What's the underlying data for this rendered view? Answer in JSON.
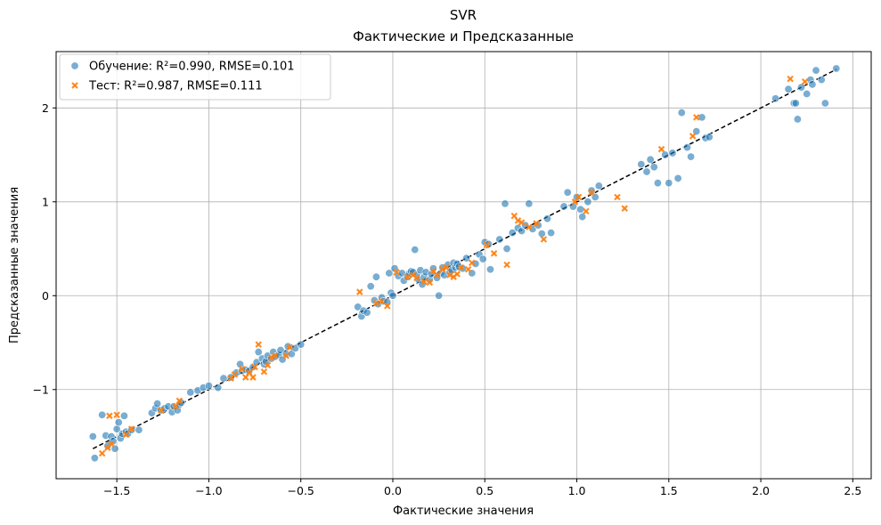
{
  "chart_data": {
    "type": "scatter",
    "title": "SVR",
    "subtitle": "Фактические и Предсказанные",
    "xlabel": "Фактические значения",
    "ylabel": "Предсказанные значения",
    "xlim": [
      -1.83,
      2.6
    ],
    "ylim": [
      -1.95,
      2.6
    ],
    "xticks": [
      -1.5,
      -1.0,
      -0.5,
      0.0,
      0.5,
      1.0,
      1.5,
      2.0,
      2.5
    ],
    "xtick_labels": [
      "−1.5",
      "−1.0",
      "−0.5",
      "0.0",
      "0.5",
      "1.0",
      "1.5",
      "2.0",
      "2.5"
    ],
    "yticks": [
      -1,
      0,
      1,
      2
    ],
    "ytick_labels": [
      "−1",
      "0",
      "1",
      "2"
    ],
    "grid": true,
    "legend_position": "top-left",
    "reference_line": {
      "x": [
        -1.63,
        2.41
      ],
      "y": [
        -1.63,
        2.41
      ],
      "style": "dashed",
      "color": "#000000"
    },
    "series": [
      {
        "name": "Обучение: R²=0.990, RMSE=0.101",
        "marker": "circle",
        "color": "#1f77b4",
        "points": [
          [
            -1.63,
            -1.5
          ],
          [
            -1.62,
            -1.73
          ],
          [
            -1.58,
            -1.27
          ],
          [
            -1.56,
            -1.49
          ],
          [
            -1.55,
            -1.6
          ],
          [
            -1.53,
            -1.5
          ],
          [
            -1.52,
            -1.55
          ],
          [
            -1.51,
            -1.63
          ],
          [
            -1.5,
            -1.42
          ],
          [
            -1.49,
            -1.35
          ],
          [
            -1.48,
            -1.52
          ],
          [
            -1.47,
            -1.47
          ],
          [
            -1.46,
            -1.28
          ],
          [
            -1.45,
            -1.45
          ],
          [
            -1.44,
            -1.47
          ],
          [
            -1.42,
            -1.43
          ],
          [
            -1.38,
            -1.43
          ],
          [
            -1.31,
            -1.25
          ],
          [
            -1.29,
            -1.2
          ],
          [
            -1.28,
            -1.15
          ],
          [
            -1.26,
            -1.22
          ],
          [
            -1.24,
            -1.2
          ],
          [
            -1.22,
            -1.18
          ],
          [
            -1.2,
            -1.24
          ],
          [
            -1.19,
            -1.18
          ],
          [
            -1.17,
            -1.22
          ],
          [
            -1.16,
            -1.16
          ],
          [
            -1.15,
            -1.14
          ],
          [
            -1.1,
            -1.03
          ],
          [
            -1.06,
            -1.01
          ],
          [
            -1.03,
            -0.98
          ],
          [
            -1.0,
            -0.96
          ],
          [
            -0.95,
            -0.98
          ],
          [
            -0.92,
            -0.88
          ],
          [
            -0.88,
            -0.87
          ],
          [
            -0.85,
            -0.82
          ],
          [
            -0.83,
            -0.73
          ],
          [
            -0.82,
            -0.8
          ],
          [
            -0.8,
            -0.79
          ],
          [
            -0.78,
            -0.8
          ],
          [
            -0.76,
            -0.76
          ],
          [
            -0.74,
            -0.71
          ],
          [
            -0.73,
            -0.6
          ],
          [
            -0.71,
            -0.67
          ],
          [
            -0.7,
            -0.73
          ],
          [
            -0.69,
            -0.7
          ],
          [
            -0.68,
            -0.64
          ],
          [
            -0.66,
            -0.67
          ],
          [
            -0.65,
            -0.6
          ],
          [
            -0.64,
            -0.65
          ],
          [
            -0.62,
            -0.63
          ],
          [
            -0.61,
            -0.58
          ],
          [
            -0.6,
            -0.68
          ],
          [
            -0.58,
            -0.62
          ],
          [
            -0.57,
            -0.54
          ],
          [
            -0.55,
            -0.62
          ],
          [
            -0.53,
            -0.56
          ],
          [
            -0.5,
            -0.52
          ],
          [
            -0.19,
            -0.12
          ],
          [
            -0.17,
            -0.22
          ],
          [
            -0.16,
            -0.16
          ],
          [
            -0.14,
            -0.18
          ],
          [
            -0.12,
            0.1
          ],
          [
            -0.1,
            -0.05
          ],
          [
            -0.09,
            0.2
          ],
          [
            -0.08,
            -0.09
          ],
          [
            -0.06,
            -0.02
          ],
          [
            -0.05,
            -0.06
          ],
          [
            -0.03,
            -0.07
          ],
          [
            -0.02,
            0.24
          ],
          [
            -0.01,
            0.03
          ],
          [
            0.0,
            0.0
          ],
          [
            0.01,
            0.29
          ],
          [
            0.03,
            0.21
          ],
          [
            0.05,
            0.24
          ],
          [
            0.06,
            0.16
          ],
          [
            0.08,
            0.2
          ],
          [
            0.09,
            0.24
          ],
          [
            0.1,
            0.26
          ],
          [
            0.11,
            0.25
          ],
          [
            0.12,
            0.49
          ],
          [
            0.13,
            0.22
          ],
          [
            0.14,
            0.17
          ],
          [
            0.15,
            0.27
          ],
          [
            0.16,
            0.12
          ],
          [
            0.17,
            0.2
          ],
          [
            0.18,
            0.25
          ],
          [
            0.2,
            0.17
          ],
          [
            0.21,
            0.23
          ],
          [
            0.22,
            0.29
          ],
          [
            0.24,
            0.19
          ],
          [
            0.25,
            0.0
          ],
          [
            0.26,
            0.24
          ],
          [
            0.27,
            0.3
          ],
          [
            0.28,
            0.22
          ],
          [
            0.3,
            0.33
          ],
          [
            0.31,
            0.25
          ],
          [
            0.32,
            0.27
          ],
          [
            0.33,
            0.35
          ],
          [
            0.34,
            0.3
          ],
          [
            0.35,
            0.34
          ],
          [
            0.36,
            0.31
          ],
          [
            0.38,
            0.29
          ],
          [
            0.4,
            0.4
          ],
          [
            0.43,
            0.24
          ],
          [
            0.45,
            0.34
          ],
          [
            0.47,
            0.44
          ],
          [
            0.49,
            0.39
          ],
          [
            0.5,
            0.57
          ],
          [
            0.52,
            0.55
          ],
          [
            0.53,
            0.28
          ],
          [
            0.58,
            0.6
          ],
          [
            0.61,
            0.98
          ],
          [
            0.62,
            0.5
          ],
          [
            0.65,
            0.67
          ],
          [
            0.68,
            0.72
          ],
          [
            0.7,
            0.69
          ],
          [
            0.72,
            0.75
          ],
          [
            0.74,
            0.98
          ],
          [
            0.76,
            0.71
          ],
          [
            0.79,
            0.75
          ],
          [
            0.81,
            0.66
          ],
          [
            0.84,
            0.82
          ],
          [
            0.86,
            0.67
          ],
          [
            0.93,
            0.95
          ],
          [
            0.95,
            1.1
          ],
          [
            0.98,
            0.95
          ],
          [
            1.0,
            1.05
          ],
          [
            1.02,
            0.92
          ],
          [
            1.03,
            0.84
          ],
          [
            1.06,
            1.0
          ],
          [
            1.08,
            1.12
          ],
          [
            1.1,
            1.05
          ],
          [
            1.12,
            1.17
          ],
          [
            1.35,
            1.4
          ],
          [
            1.38,
            1.32
          ],
          [
            1.4,
            1.45
          ],
          [
            1.42,
            1.37
          ],
          [
            1.44,
            1.2
          ],
          [
            1.48,
            1.5
          ],
          [
            1.5,
            1.2
          ],
          [
            1.52,
            1.52
          ],
          [
            1.55,
            1.25
          ],
          [
            1.57,
            1.95
          ],
          [
            1.6,
            1.58
          ],
          [
            1.62,
            1.48
          ],
          [
            1.65,
            1.75
          ],
          [
            1.68,
            1.9
          ],
          [
            1.7,
            1.68
          ],
          [
            1.72,
            1.69
          ],
          [
            2.08,
            2.1
          ],
          [
            2.15,
            2.2
          ],
          [
            2.18,
            2.05
          ],
          [
            2.19,
            2.05
          ],
          [
            2.2,
            1.88
          ],
          [
            2.22,
            2.22
          ],
          [
            2.25,
            2.15
          ],
          [
            2.27,
            2.3
          ],
          [
            2.28,
            2.25
          ],
          [
            2.3,
            2.4
          ],
          [
            2.33,
            2.3
          ],
          [
            2.35,
            2.05
          ],
          [
            2.41,
            2.42
          ]
        ]
      },
      {
        "name": "Тест: R²=0.987, RMSE=0.111",
        "marker": "x",
        "color": "#ff7f0e",
        "points": [
          [
            -1.58,
            -1.68
          ],
          [
            -1.55,
            -1.62
          ],
          [
            -1.54,
            -1.28
          ],
          [
            -1.53,
            -1.58
          ],
          [
            -1.5,
            -1.27
          ],
          [
            -1.45,
            -1.48
          ],
          [
            -1.42,
            -1.42
          ],
          [
            -1.26,
            -1.22
          ],
          [
            -1.18,
            -1.18
          ],
          [
            -1.16,
            -1.12
          ],
          [
            -0.88,
            -0.88
          ],
          [
            -0.86,
            -0.84
          ],
          [
            -0.82,
            -0.78
          ],
          [
            -0.8,
            -0.87
          ],
          [
            -0.78,
            -0.82
          ],
          [
            -0.76,
            -0.87
          ],
          [
            -0.75,
            -0.76
          ],
          [
            -0.73,
            -0.52
          ],
          [
            -0.7,
            -0.81
          ],
          [
            -0.68,
            -0.74
          ],
          [
            -0.66,
            -0.66
          ],
          [
            -0.64,
            -0.64
          ],
          [
            -0.58,
            -0.64
          ],
          [
            -0.56,
            -0.55
          ],
          [
            -0.18,
            0.04
          ],
          [
            -0.09,
            -0.08
          ],
          [
            -0.06,
            -0.06
          ],
          [
            -0.03,
            -0.11
          ],
          [
            0.02,
            0.25
          ],
          [
            0.08,
            0.2
          ],
          [
            0.11,
            0.22
          ],
          [
            0.13,
            0.19
          ],
          [
            0.17,
            0.15
          ],
          [
            0.2,
            0.14
          ],
          [
            0.22,
            0.26
          ],
          [
            0.24,
            0.22
          ],
          [
            0.27,
            0.28
          ],
          [
            0.29,
            0.3
          ],
          [
            0.31,
            0.22
          ],
          [
            0.33,
            0.2
          ],
          [
            0.35,
            0.23
          ],
          [
            0.37,
            0.3
          ],
          [
            0.41,
            0.28
          ],
          [
            0.43,
            0.35
          ],
          [
            0.51,
            0.54
          ],
          [
            0.55,
            0.45
          ],
          [
            0.62,
            0.33
          ],
          [
            0.66,
            0.85
          ],
          [
            0.68,
            0.8
          ],
          [
            0.7,
            0.78
          ],
          [
            0.74,
            0.73
          ],
          [
            0.78,
            0.77
          ],
          [
            0.82,
            0.6
          ],
          [
            0.99,
            1.0
          ],
          [
            1.01,
            1.05
          ],
          [
            1.05,
            0.9
          ],
          [
            1.08,
            1.1
          ],
          [
            1.22,
            1.05
          ],
          [
            1.26,
            0.93
          ],
          [
            1.46,
            1.56
          ],
          [
            1.63,
            1.7
          ],
          [
            1.65,
            1.9
          ],
          [
            2.16,
            2.31
          ],
          [
            2.24,
            2.28
          ]
        ]
      }
    ]
  }
}
